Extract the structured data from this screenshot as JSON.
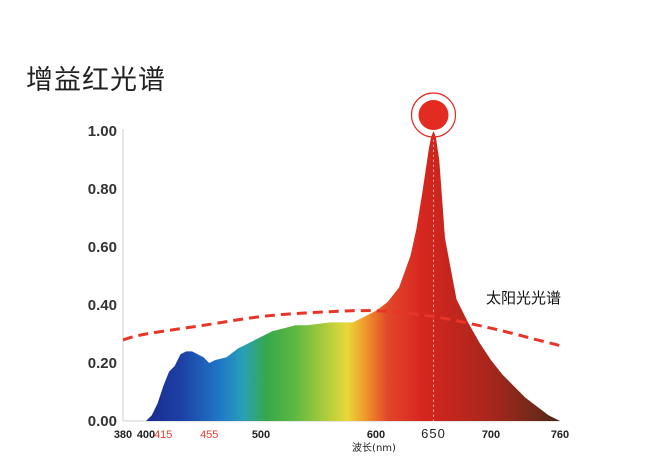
{
  "chart_data": {
    "type": "area",
    "title": "增益红光谱",
    "xlabel": "波长(nm)",
    "ylabel": "",
    "xlim": [
      380,
      760
    ],
    "ylim": [
      0,
      1.0
    ],
    "y_ticks": [
      "0.00",
      "0.20",
      "0.40",
      "0.60",
      "0.80",
      "1.00"
    ],
    "x_ticks": [
      {
        "value": 380,
        "label": "380",
        "color": "#222222"
      },
      {
        "value": 400,
        "label": "400",
        "color": "#222222"
      },
      {
        "value": 415,
        "label": "415",
        "color": "#e8402b"
      },
      {
        "value": 455,
        "label": "455",
        "color": "#e8402b"
      },
      {
        "value": 500,
        "label": "500",
        "color": "#222222"
      },
      {
        "value": 600,
        "label": "600",
        "color": "#222222"
      },
      {
        "value": 650,
        "label": "650",
        "color": "#222222"
      },
      {
        "value": 700,
        "label": "700",
        "color": "#222222"
      },
      {
        "value": 760,
        "label": "760",
        "color": "#222222"
      }
    ],
    "series": [
      {
        "kind": "area",
        "x": [
          400,
          405,
          410,
          415,
          420,
          425,
          430,
          435,
          440,
          450,
          455,
          460,
          470,
          480,
          490,
          500,
          510,
          520,
          530,
          540,
          560,
          580,
          590,
          600,
          610,
          620,
          630,
          635,
          640,
          643,
          646,
          648,
          650,
          652,
          655,
          660,
          670,
          680,
          690,
          700,
          710,
          720,
          730,
          740,
          750,
          760
        ],
        "y": [
          0.0,
          0.02,
          0.06,
          0.12,
          0.17,
          0.19,
          0.23,
          0.24,
          0.24,
          0.22,
          0.2,
          0.21,
          0.22,
          0.25,
          0.27,
          0.29,
          0.31,
          0.32,
          0.33,
          0.33,
          0.34,
          0.34,
          0.36,
          0.38,
          0.41,
          0.46,
          0.57,
          0.66,
          0.78,
          0.86,
          0.94,
          0.98,
          1.0,
          0.98,
          0.9,
          0.63,
          0.42,
          0.34,
          0.27,
          0.21,
          0.16,
          0.12,
          0.08,
          0.05,
          0.02,
          0.0
        ]
      },
      {
        "name": "太阳光光谱",
        "kind": "dashed-line",
        "color": "#e8352a",
        "x": [
          380,
          400,
          450,
          500,
          550,
          600,
          650,
          700,
          740,
          760
        ],
        "y": [
          0.28,
          0.3,
          0.33,
          0.36,
          0.375,
          0.38,
          0.36,
          0.32,
          0.28,
          0.26
        ]
      }
    ],
    "peak_marker": {
      "x": 650,
      "y": 1.0,
      "color": "#e32b22"
    },
    "reference_line_x": 650,
    "spectrum_colors": [
      {
        "nm": 400,
        "color": "#1a2b8c"
      },
      {
        "nm": 430,
        "color": "#1d3fa6"
      },
      {
        "nm": 465,
        "color": "#1f79c7"
      },
      {
        "nm": 485,
        "color": "#2aa0b6"
      },
      {
        "nm": 505,
        "color": "#36a84a"
      },
      {
        "nm": 530,
        "color": "#5fb842"
      },
      {
        "nm": 560,
        "color": "#b9cf3a"
      },
      {
        "nm": 575,
        "color": "#e8d83a"
      },
      {
        "nm": 590,
        "color": "#f09a2b"
      },
      {
        "nm": 610,
        "color": "#e2472a"
      },
      {
        "nm": 640,
        "color": "#d6261f"
      },
      {
        "nm": 700,
        "color": "#a8261c"
      },
      {
        "nm": 740,
        "color": "#6e2a1a"
      },
      {
        "nm": 760,
        "color": "#4a2414"
      }
    ]
  }
}
